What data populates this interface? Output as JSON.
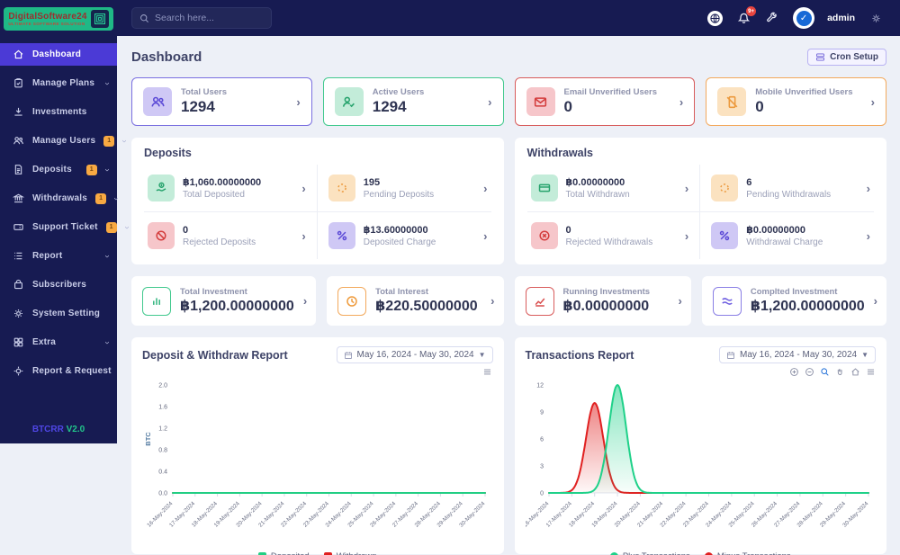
{
  "header": {
    "logo_title": "DigitalSoftware24",
    "logo_subtitle": "ULTIMATE SOFTWARE SOLUTION",
    "search_placeholder": "Search here...",
    "notification_count": "9+",
    "admin_label": "admin",
    "avatar_check": "✓"
  },
  "sidebar": {
    "items": [
      {
        "label": "Dashboard"
      },
      {
        "label": "Manage Plans"
      },
      {
        "label": "Investments"
      },
      {
        "label": "Manage Users",
        "badge": "1"
      },
      {
        "label": "Deposits",
        "badge": "1"
      },
      {
        "label": "Withdrawals",
        "badge": "1"
      },
      {
        "label": "Support Ticket",
        "badge": "1"
      },
      {
        "label": "Report"
      },
      {
        "label": "Subscribers"
      },
      {
        "label": "System Setting"
      },
      {
        "label": "Extra"
      },
      {
        "label": "Report & Request"
      }
    ],
    "version_prefix": "BTCRR",
    "version": "V2.0"
  },
  "page": {
    "title": "Dashboard",
    "cron_button": "Cron Setup"
  },
  "stat_cards": [
    {
      "label": "Total Users",
      "value": "1294"
    },
    {
      "label": "Active Users",
      "value": "1294"
    },
    {
      "label": "Email Unverified Users",
      "value": "0"
    },
    {
      "label": "Mobile Unverified Users",
      "value": "0"
    }
  ],
  "deposits_panel": {
    "title": "Deposits",
    "items": [
      {
        "value": "฿1,060.00000000",
        "label": "Total Deposited"
      },
      {
        "value": "195",
        "label": "Pending Deposits"
      },
      {
        "value": "0",
        "label": "Rejected Deposits"
      },
      {
        "value": "฿13.60000000",
        "label": "Deposited Charge"
      }
    ]
  },
  "withdrawals_panel": {
    "title": "Withdrawals",
    "items": [
      {
        "value": "฿0.00000000",
        "label": "Total Withdrawn"
      },
      {
        "value": "6",
        "label": "Pending Withdrawals"
      },
      {
        "value": "0",
        "label": "Rejected Withdrawals"
      },
      {
        "value": "฿0.00000000",
        "label": "Withdrawal Charge"
      }
    ]
  },
  "investment_cards": [
    {
      "label": "Total Investment",
      "value": "฿1,200.00000000"
    },
    {
      "label": "Total Interest",
      "value": "฿220.50000000"
    },
    {
      "label": "Running Investments",
      "value": "฿0.00000000"
    },
    {
      "label": "Complted Investment",
      "value": "฿1,200.00000000"
    }
  ],
  "chart_data": [
    {
      "type": "line",
      "title": "Deposit & Withdraw Report",
      "date_range": "May 16, 2024 - May 30, 2024",
      "ylabel": "BTC",
      "ylim": [
        0,
        2.0
      ],
      "yticks": [
        "2.0",
        "1.6",
        "1.2",
        "0.8",
        "0.4",
        "0.0"
      ],
      "categories": [
        "16-May-2024",
        "17-May-2024",
        "18-May-2024",
        "19-May-2024",
        "20-May-2024",
        "21-May-2024",
        "22-May-2024",
        "23-May-2024",
        "24-May-2024",
        "25-May-2024",
        "26-May-2024",
        "27-May-2024",
        "28-May-2024",
        "29-May-2024",
        "30-May-2024"
      ],
      "smooth": false,
      "legend_marker": "square",
      "legend_position": "bottom",
      "grid": false,
      "series": [
        {
          "name": "Deposited",
          "color": "#21ce83",
          "values": [
            0,
            0,
            0,
            0,
            0,
            0,
            0,
            0,
            0,
            0,
            0,
            0,
            0,
            0,
            0
          ]
        },
        {
          "name": "Withdrawn",
          "color": "#e02020",
          "values": [
            0,
            0,
            0,
            0,
            0,
            0,
            0,
            0,
            0,
            0,
            0,
            0,
            0,
            0,
            0
          ]
        }
      ]
    },
    {
      "type": "area",
      "title": "Transactions Report",
      "date_range": "May 16, 2024 - May 30, 2024",
      "ylabel": "",
      "ylim": [
        0,
        12
      ],
      "yticks": [
        "12",
        "9",
        "6",
        "3",
        "0"
      ],
      "categories": [
        "16-May-2024",
        "17-May-2024",
        "18-May-2024",
        "19-May-2024",
        "20-May-2024",
        "21-May-2024",
        "22-May-2024",
        "23-May-2024",
        "24-May-2024",
        "25-May-2024",
        "26-May-2024",
        "27-May-2024",
        "28-May-2024",
        "29-May-2024",
        "30-May-2024"
      ],
      "smooth": true,
      "legend_marker": "circle",
      "legend_position": "bottom",
      "grid": false,
      "series": [
        {
          "name": "Plus Transactions",
          "color": "#1fd189",
          "values": [
            0,
            0,
            0,
            12,
            0,
            0,
            0,
            0,
            0,
            0,
            0,
            0,
            0,
            0,
            0
          ]
        },
        {
          "name": "Minus Transactions",
          "color": "#e02020",
          "values": [
            0,
            0,
            10,
            0,
            0,
            0,
            0,
            0,
            0,
            0,
            0,
            0,
            0,
            0,
            0
          ]
        }
      ]
    }
  ]
}
